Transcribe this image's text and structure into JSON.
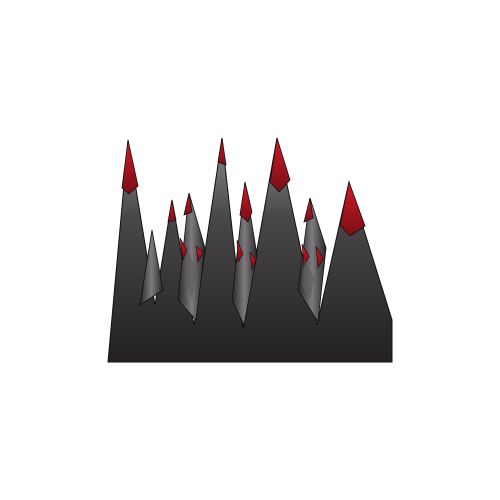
{
  "illustration": {
    "subject": "mountain-range-icon",
    "colors": {
      "rock_dark": "#232021",
      "rock_light": "#8e8c8f",
      "snow_cap": "#b0151f",
      "snow_cap_dark": "#7a0e16",
      "outline": "#111111",
      "background": "#ffffff"
    }
  }
}
